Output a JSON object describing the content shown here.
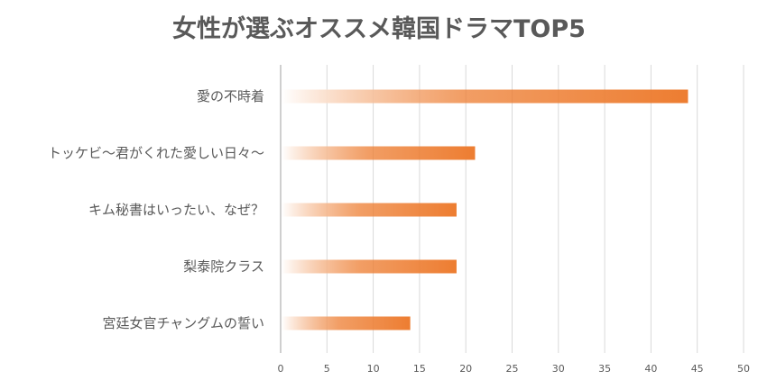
{
  "chart_data": {
    "type": "bar",
    "orientation": "horizontal",
    "title": "女性が選ぶオススメ韓国ドラマTOP5",
    "categories": [
      "愛の不時着",
      "トッケビ〜君がくれた愛しい日々〜",
      "キム秘書はいったい、なぜ？",
      "梨泰院クラス",
      "宮廷女官チャングムの誓い"
    ],
    "values": [
      44,
      21,
      19,
      19,
      14
    ],
    "xlim": [
      0,
      50
    ],
    "xticks": [
      "0",
      "5",
      "10",
      "15",
      "20",
      "25",
      "30",
      "35",
      "40",
      "45",
      "50"
    ],
    "grid": true,
    "legend": "none",
    "colors": {
      "bar": "#ED7D31",
      "bar_fade": "#ffffff",
      "grid": "#D9D9D9",
      "text": "#595959"
    }
  }
}
